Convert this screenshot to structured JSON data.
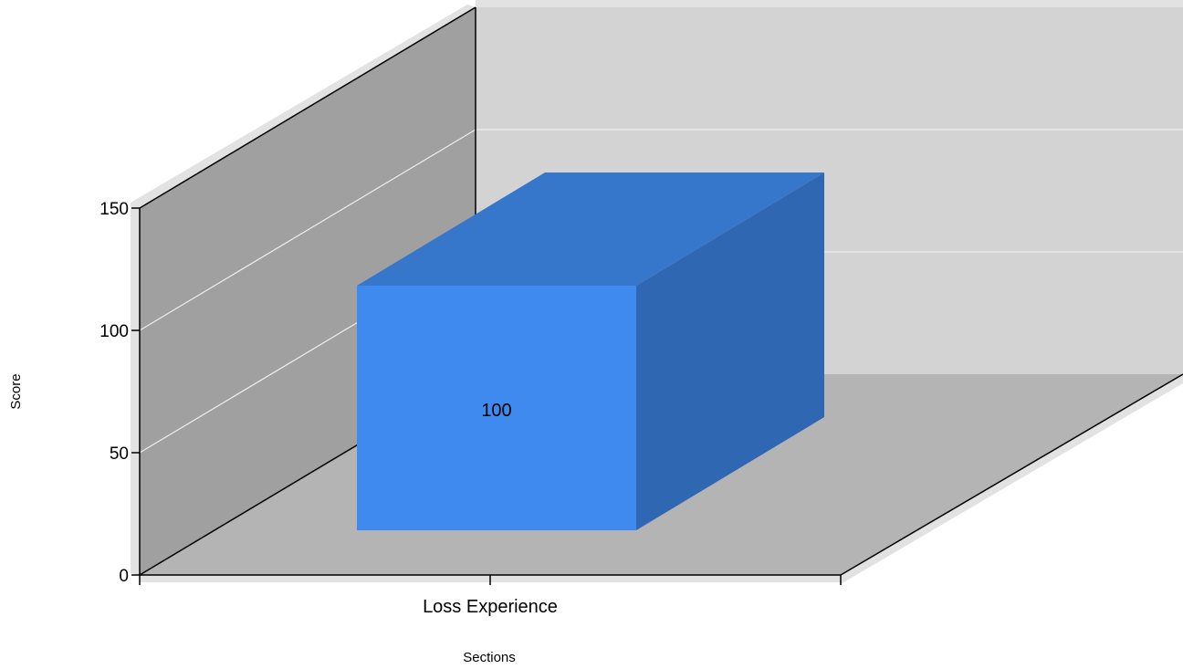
{
  "chart_data": {
    "type": "bar",
    "three_d": true,
    "categories": [
      "Loss Experience"
    ],
    "values": [
      100
    ],
    "data_labels": [
      "100"
    ],
    "xlabel": "Sections",
    "ylabel": "Score",
    "ylim": [
      0,
      150
    ],
    "yticks": [
      "0",
      "50",
      "100",
      "150"
    ],
    "grid": true,
    "legend": "none",
    "colors": {
      "bar_front": "#3f8aee",
      "bar_top": "#3677cc",
      "bar_side": "#2f67b3",
      "back_wall": "#d3d3d3",
      "side_wall": "#a0a0a0",
      "floor": "#b4b4b4",
      "wall_edge": "#e2e2e2",
      "gridline": "#eeeeee"
    }
  }
}
